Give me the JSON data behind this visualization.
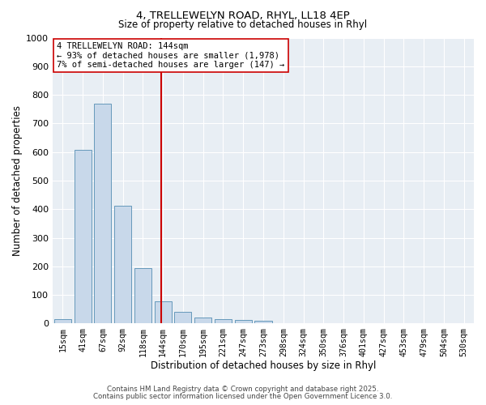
{
  "title_line1": "4, TRELLEWELYN ROAD, RHYL, LL18 4EP",
  "title_line2": "Size of property relative to detached houses in Rhyl",
  "xlabel": "Distribution of detached houses by size in Rhyl",
  "ylabel": "Number of detached properties",
  "categories": [
    "15sqm",
    "41sqm",
    "67sqm",
    "92sqm",
    "118sqm",
    "144sqm",
    "170sqm",
    "195sqm",
    "221sqm",
    "247sqm",
    "273sqm",
    "298sqm",
    "324sqm",
    "350sqm",
    "376sqm",
    "401sqm",
    "427sqm",
    "453sqm",
    "479sqm",
    "504sqm",
    "530sqm"
  ],
  "values": [
    15,
    607,
    770,
    413,
    195,
    78,
    40,
    20,
    15,
    12,
    10,
    0,
    0,
    0,
    0,
    0,
    0,
    0,
    0,
    0,
    0
  ],
  "bar_color": "#c8d8ea",
  "bar_edgecolor": "#6699bb",
  "highlighted_bar_index": 5,
  "highlighted_bar_color": "#c8d8ea",
  "highlighted_bar_edgecolor": "#6699bb",
  "vline_index": 5,
  "vline_color": "#cc0000",
  "annotation_text": "4 TRELLEWELYN ROAD: 144sqm\n← 93% of detached houses are smaller (1,978)\n7% of semi-detached houses are larger (147) →",
  "annotation_box_facecolor": "white",
  "annotation_box_edgecolor": "#cc0000",
  "ylim": [
    0,
    1000
  ],
  "yticks": [
    0,
    100,
    200,
    300,
    400,
    500,
    600,
    700,
    800,
    900,
    1000
  ],
  "footer_line1": "Contains HM Land Registry data © Crown copyright and database right 2025.",
  "footer_line2": "Contains public sector information licensed under the Open Government Licence 3.0.",
  "bg_color": "#ffffff",
  "plot_bg_color": "#e8eef4",
  "grid_color": "#ffffff",
  "title1_fontsize": 9.5,
  "title2_fontsize": 8.5
}
